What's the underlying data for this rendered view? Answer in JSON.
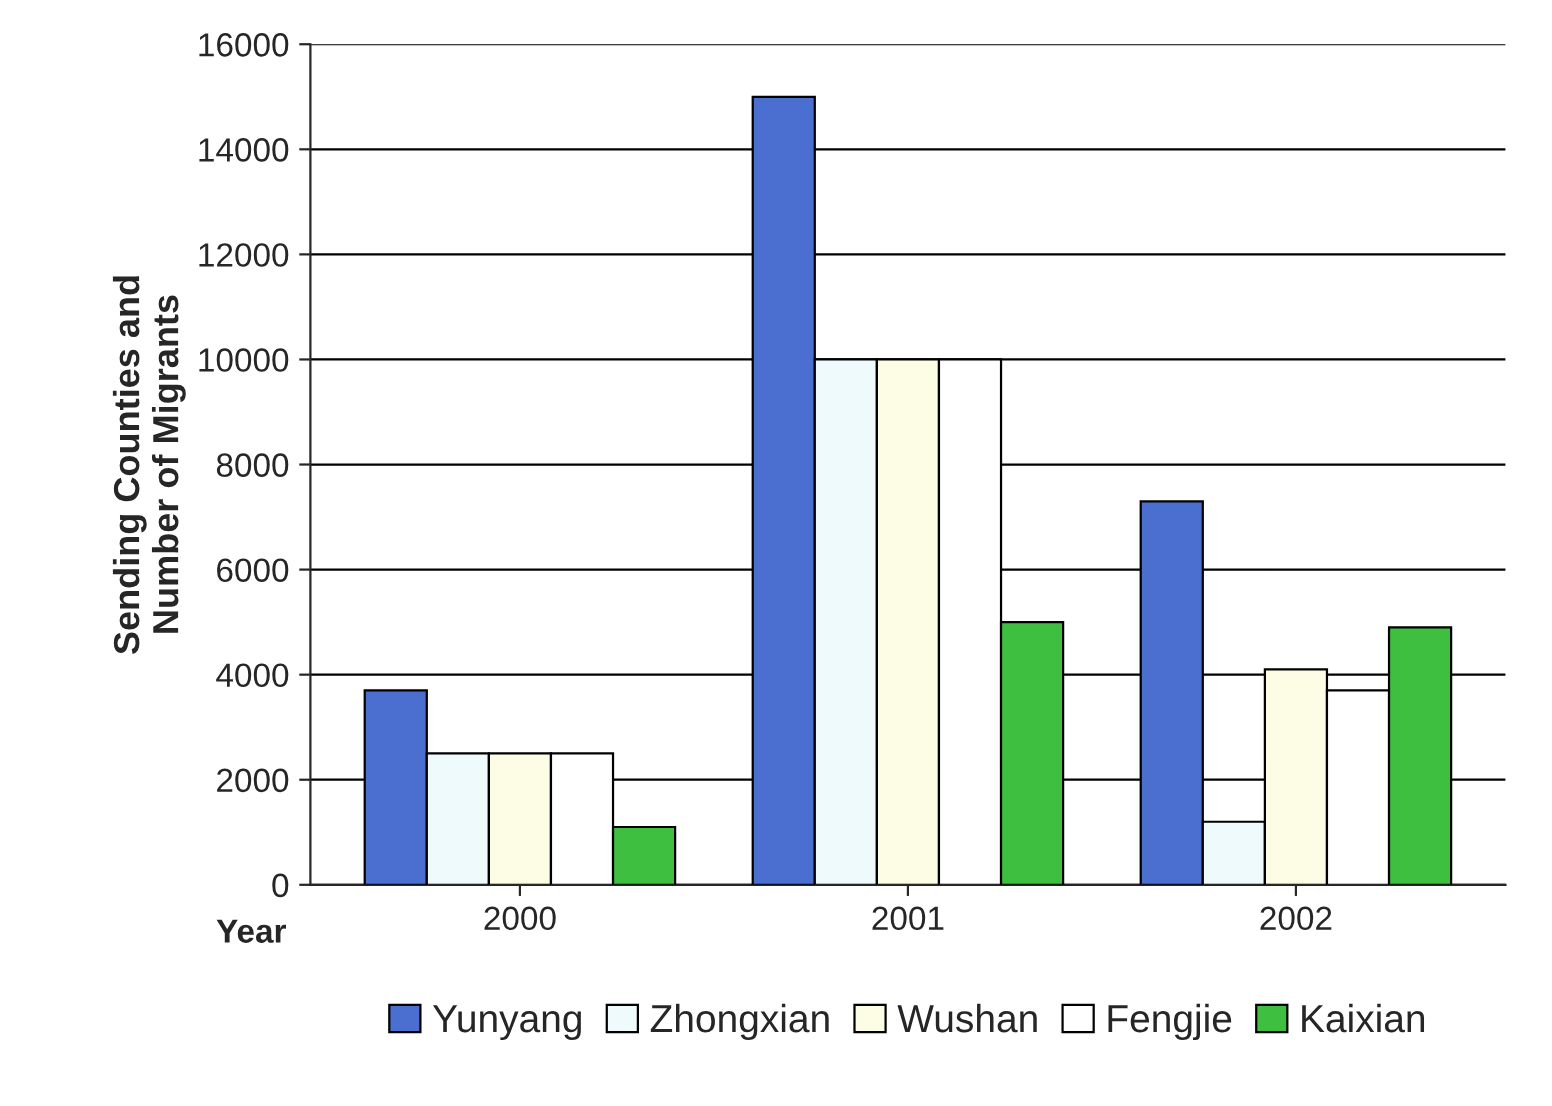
{
  "chart_data": {
    "type": "bar",
    "ylabel": "Sending Counties and\nNumber of Migrants",
    "categories": [
      "2000",
      "2001",
      "2002"
    ],
    "series": [
      {
        "name": "Yunyang",
        "color": "#4a6fd0",
        "values": [
          3700,
          15000,
          7300
        ]
      },
      {
        "name": "Zhongxian",
        "color": "#eefafc",
        "values": [
          2500,
          10000,
          1200
        ]
      },
      {
        "name": "Wushan",
        "color": "#fdfde6",
        "values": [
          2500,
          10000,
          4100
        ]
      },
      {
        "name": "Fengjie",
        "color": "#ffffff",
        "values": [
          2500,
          10000,
          3700
        ]
      },
      {
        "name": "Kaixian",
        "color": "#3fbf3f",
        "values": [
          1100,
          5000,
          4900
        ]
      }
    ],
    "ylim": [
      0,
      16000
    ],
    "yticks": [
      0,
      2000,
      4000,
      6000,
      8000,
      10000,
      12000,
      14000,
      16000
    ],
    "grid": "y",
    "legend": "bottom",
    "annotations": [
      "Year"
    ]
  }
}
